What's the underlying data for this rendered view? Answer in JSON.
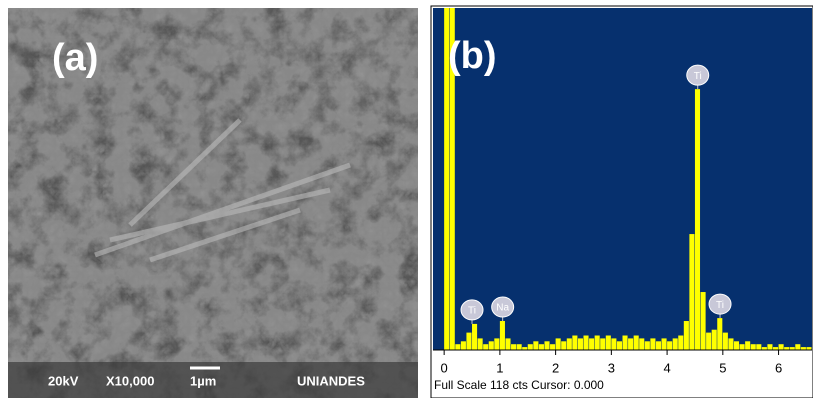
{
  "panel_a": {
    "label": "(a)",
    "footer": [
      "20kV",
      "X10,000",
      "1µm",
      "UNIANDES"
    ]
  },
  "chart_data": {
    "type": "histogram",
    "label": "(b)",
    "color": "#ffff00",
    "background": "#06306e",
    "bins": [
      -0.2,
      -0.1,
      0,
      0.1,
      0.2,
      0.3,
      0.4,
      0.5,
      0.6,
      0.7,
      0.8,
      0.9,
      1,
      1.1,
      1.2,
      1.3,
      1.4,
      1.5,
      1.6,
      1.7,
      1.8,
      1.9,
      2,
      2.1,
      2.2,
      2.3,
      2.4,
      2.5,
      2.6,
      2.7,
      2.8,
      2.9,
      3,
      3.1,
      3.2,
      3.3,
      3.4,
      3.5,
      3.6,
      3.7,
      3.8,
      3.9,
      4,
      4.1,
      4.2,
      4.3,
      4.4,
      4.5,
      4.6,
      4.7,
      4.8,
      4.9,
      5,
      5.1,
      5.2,
      5.3,
      5.4,
      5.5,
      5.6,
      5.7,
      5.8,
      5.9,
      6,
      6.1,
      6.2,
      6.3,
      6.4,
      6.5,
      6.6
    ],
    "values": [
      0,
      0,
      118,
      118,
      2,
      3,
      6,
      9,
      4,
      2,
      3,
      4,
      10,
      4,
      2,
      2,
      1,
      2,
      3,
      2,
      3,
      2,
      4,
      3,
      4,
      5,
      4,
      5,
      4,
      5,
      4,
      5,
      4,
      3,
      5,
      4,
      5,
      4,
      3,
      4,
      3,
      4,
      3,
      4,
      5,
      10,
      40,
      90,
      20,
      6,
      7,
      11,
      6,
      4,
      3,
      2,
      3,
      2,
      2,
      1,
      2,
      1,
      2,
      1,
      1,
      2,
      1,
      1
    ],
    "xlim": [
      -0.2,
      6.6
    ],
    "xticks": [
      0,
      1,
      2,
      3,
      4,
      5,
      6
    ],
    "ylim": [
      0,
      118
    ],
    "annotations": [
      {
        "label": "Ti",
        "x": 0.5
      },
      {
        "label": "Na",
        "x": 1.05
      },
      {
        "label": "Ti",
        "x": 4.55
      },
      {
        "label": "Ti",
        "x": 4.95
      }
    ],
    "footer": "Full Scale 118 cts Cursor: 0.000"
  }
}
